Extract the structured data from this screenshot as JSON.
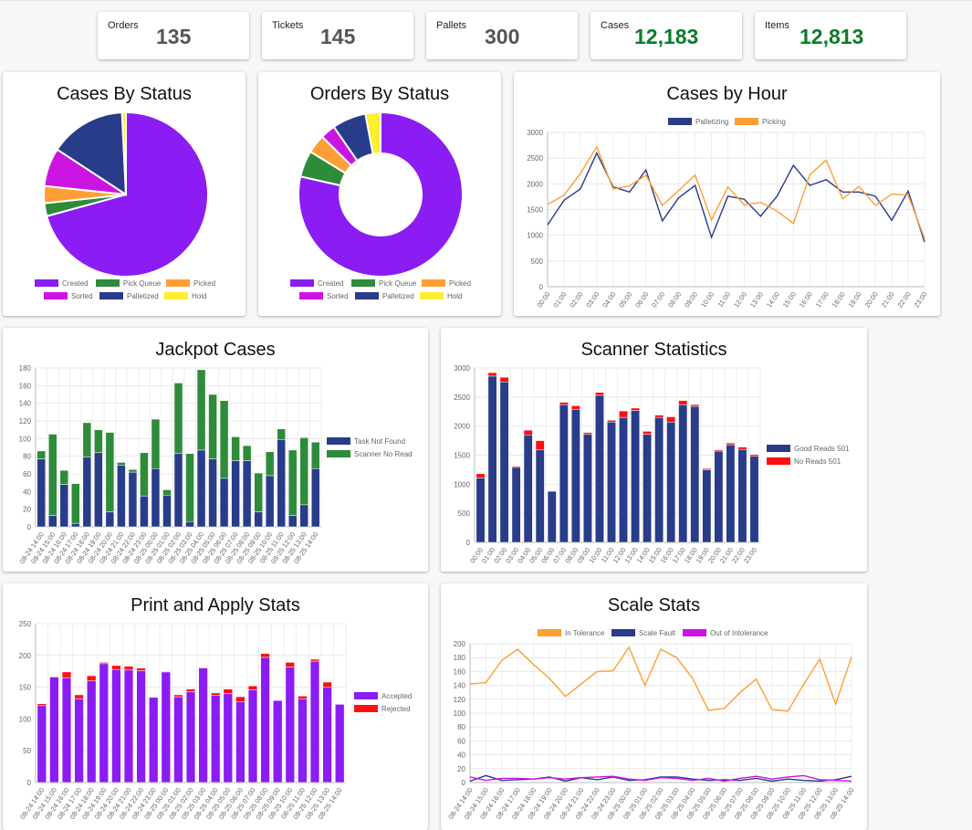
{
  "stats": [
    {
      "label": "Orders",
      "value": "135"
    },
    {
      "label": "Tickets",
      "value": "145"
    },
    {
      "label": "Pallets",
      "value": "300"
    },
    {
      "label": "Cases",
      "value": "12,183"
    },
    {
      "label": "Items",
      "value": "12,813"
    }
  ],
  "colors": {
    "created": "#8b1cf3",
    "pick_queue": "#2e8b3a",
    "picked": "#ff9f35",
    "sorted": "#cc14e0",
    "palletized": "#283c8a",
    "hold": "#ffee2e",
    "red": "#ff0f0f",
    "stat_green": "#0a7d2a"
  },
  "status_legend": [
    "Created",
    "Pick Queue",
    "Picked",
    "Sorted",
    "Palletized",
    "Hold"
  ],
  "chart_data": [
    {
      "id": "cases_by_status",
      "type": "pie",
      "title": "Cases By Status",
      "labels": [
        "Created",
        "Pick Queue",
        "Picked",
        "Sorted",
        "Palletized",
        "Hold"
      ],
      "values": [
        8620,
        310,
        410,
        920,
        1830,
        93
      ]
    },
    {
      "id": "orders_by_status",
      "type": "doughnut",
      "title": "Orders By Status",
      "labels": [
        "Created",
        "Pick Queue",
        "Picked",
        "Sorted",
        "Palletized",
        "Hold"
      ],
      "values": [
        106,
        7,
        5,
        4,
        9,
        4
      ]
    },
    {
      "id": "cases_by_hour",
      "type": "line",
      "title": "Cases by Hour",
      "categories": [
        "00:00",
        "01:00",
        "02:00",
        "03:00",
        "04:00",
        "05:00",
        "06:00",
        "07:00",
        "08:00",
        "09:00",
        "10:00",
        "11:00",
        "12:00",
        "13:00",
        "14:00",
        "15:00",
        "16:00",
        "17:00",
        "18:00",
        "19:00",
        "20:00",
        "21:00",
        "22:00",
        "23:00"
      ],
      "series": [
        {
          "name": "Palletizing",
          "values": [
            1200,
            1680,
            1900,
            2600,
            1940,
            1840,
            2270,
            1280,
            1730,
            1970,
            960,
            1760,
            1700,
            1370,
            1760,
            2360,
            1970,
            2080,
            1840,
            1840,
            1760,
            1290,
            1860,
            870
          ]
        },
        {
          "name": "Picking",
          "values": [
            1600,
            1780,
            2200,
            2720,
            1900,
            1960,
            2170,
            1580,
            1870,
            2170,
            1300,
            1940,
            1590,
            1640,
            1470,
            1230,
            2180,
            2460,
            1710,
            1950,
            1580,
            1800,
            1780,
            940
          ]
        }
      ],
      "ylim": [
        0,
        3000
      ],
      "yticks": [
        0,
        500,
        1000,
        1500,
        2000,
        2500,
        3000
      ]
    },
    {
      "id": "jackpot_cases",
      "type": "bar",
      "stacked": true,
      "title": "Jackpot Cases",
      "categories": [
        "08-24 14:00",
        "08-24 15:00",
        "08-24 16:00",
        "08-24 17:00",
        "08-24 18:00",
        "08-24 19:00",
        "08-24 20:00",
        "08-24 21:00",
        "08-24 22:00",
        "08-24 23:00",
        "08-25 00:00",
        "08-25 01:00",
        "08-25 02:00",
        "08-25 03:00",
        "08-25 04:00",
        "08-25 05:00",
        "08-25 06:00",
        "08-25 07:00",
        "08-25 08:00",
        "08-25 09:00",
        "08-25 10:00",
        "08-25 11:00",
        "08-25 12:00",
        "08-25 13:00",
        "08-25 14:00"
      ],
      "series": [
        {
          "name": "Task Not Found",
          "values": [
            77,
            13,
            48,
            4,
            79,
            84,
            17,
            70,
            62,
            35,
            66,
            36,
            83,
            6,
            87,
            77,
            55,
            75,
            75,
            17,
            58,
            99,
            13,
            25,
            66
          ]
        },
        {
          "name": "Scanner No Read",
          "values": [
            9,
            92,
            16,
            45,
            39,
            26,
            90,
            3,
            3,
            49,
            56,
            6,
            80,
            77,
            91,
            73,
            88,
            27,
            17,
            44,
            27,
            12,
            74,
            76,
            30
          ]
        }
      ],
      "ylim": [
        0,
        180
      ],
      "yticks": [
        0,
        20,
        40,
        60,
        80,
        100,
        120,
        140,
        160,
        180
      ]
    },
    {
      "id": "scanner_statistics",
      "type": "bar",
      "stacked": true,
      "title": "Scanner Statistics",
      "categories": [
        "00:00",
        "01:00",
        "02:00",
        "03:00",
        "04:00",
        "05:00",
        "06:00",
        "07:00",
        "08:00",
        "09:00",
        "10:00",
        "11:00",
        "12:00",
        "13:00",
        "14:00",
        "15:00",
        "16:00",
        "17:00",
        "18:00",
        "19:00",
        "20:00",
        "21:00",
        "22:00",
        "23:00"
      ],
      "series": [
        {
          "name": "Good Reads 501",
          "values": [
            1110,
            2860,
            2760,
            1290,
            1850,
            1590,
            880,
            2370,
            2290,
            1860,
            2530,
            2070,
            2150,
            2270,
            1860,
            2150,
            2070,
            2370,
            2340,
            1250,
            1570,
            1680,
            1600,
            1480
          ]
        },
        {
          "name": "No Reads 501",
          "values": [
            70,
            60,
            80,
            20,
            80,
            160,
            5,
            40,
            60,
            30,
            50,
            30,
            110,
            40,
            50,
            40,
            90,
            70,
            30,
            20,
            20,
            30,
            40,
            30
          ]
        }
      ],
      "ylim": [
        0,
        3000
      ],
      "yticks": [
        0,
        500,
        1000,
        1500,
        2000,
        2500,
        3000
      ]
    },
    {
      "id": "print_apply_stats",
      "type": "bar",
      "stacked": true,
      "title": "Print and Apply Stats",
      "categories": [
        "08-24 14:00",
        "08-24 15:00",
        "08-24 16:00",
        "08-24 17:00",
        "08-24 18:00",
        "08-24 19:00",
        "08-24 20:00",
        "08-24 21:00",
        "08-24 22:00",
        "08-24 23:00",
        "08-25 00:00",
        "08-25 01:00",
        "08-25 02:00",
        "08-25 03:00",
        "08-25 04:00",
        "08-25 05:00",
        "08-25 06:00",
        "08-25 07:00",
        "08-25 08:00",
        "08-25 09:00",
        "08-25 10:00",
        "08-25 11:00",
        "08-25 12:00",
        "08-25 13:00",
        "08-25 14:00"
      ],
      "series": [
        {
          "name": "Accepted",
          "values": [
            121,
            166,
            165,
            132,
            160,
            187,
            178,
            177,
            176,
            134,
            174,
            135,
            143,
            180,
            137,
            140,
            127,
            146,
            197,
            129,
            182,
            132,
            191,
            150,
            123
          ]
        },
        {
          "name": "Rejected",
          "values": [
            3,
            1,
            9,
            6,
            8,
            2,
            6,
            6,
            4,
            0,
            1,
            3,
            4,
            1,
            4,
            7,
            8,
            6,
            6,
            0,
            7,
            4,
            3,
            8,
            0
          ]
        }
      ],
      "ylim": [
        0,
        250
      ],
      "yticks": [
        0,
        50,
        100,
        150,
        200,
        250
      ]
    },
    {
      "id": "scale_stats",
      "type": "line",
      "title": "Scale Stats",
      "categories": [
        "08-24 14:00",
        "08-24 15:00",
        "08-24 16:00",
        "08-24 17:00",
        "08-24 18:00",
        "08-24 19:00",
        "08-24 20:00",
        "08-24 21:00",
        "08-24 22:00",
        "08-24 23:00",
        "08-25 00:00",
        "08-25 01:00",
        "08-25 02:00",
        "08-25 03:00",
        "08-25 04:00",
        "08-25 05:00",
        "08-25 06:00",
        "08-25 07:00",
        "08-25 08:00",
        "08-25 09:00",
        "08-25 10:00",
        "08-25 11:00",
        "08-25 12:00",
        "08-25 13:00",
        "08-25 14:00"
      ],
      "series": [
        {
          "name": "In Tolerance",
          "values": [
            142,
            144,
            176,
            192,
            170,
            150,
            124,
            142,
            160,
            161,
            195,
            140,
            192,
            180,
            150,
            104,
            107,
            130,
            149,
            105,
            103,
            142,
            178,
            113,
            181
          ]
        },
        {
          "name": "Scale Fault",
          "values": [
            2,
            10,
            3,
            4,
            5,
            8,
            2,
            7,
            4,
            8,
            3,
            4,
            8,
            8,
            5,
            3,
            4,
            3,
            6,
            2,
            5,
            3,
            2,
            4,
            9
          ]
        },
        {
          "name": "Out of Intolerance",
          "values": [
            8,
            3,
            6,
            6,
            5,
            7,
            5,
            7,
            8,
            9,
            5,
            3,
            7,
            6,
            3,
            6,
            2,
            6,
            9,
            5,
            8,
            10,
            4,
            3,
            2
          ]
        }
      ],
      "ylim": [
        0,
        200
      ],
      "yticks": [
        0,
        20,
        40,
        60,
        80,
        100,
        120,
        140,
        160,
        180,
        200
      ]
    }
  ]
}
